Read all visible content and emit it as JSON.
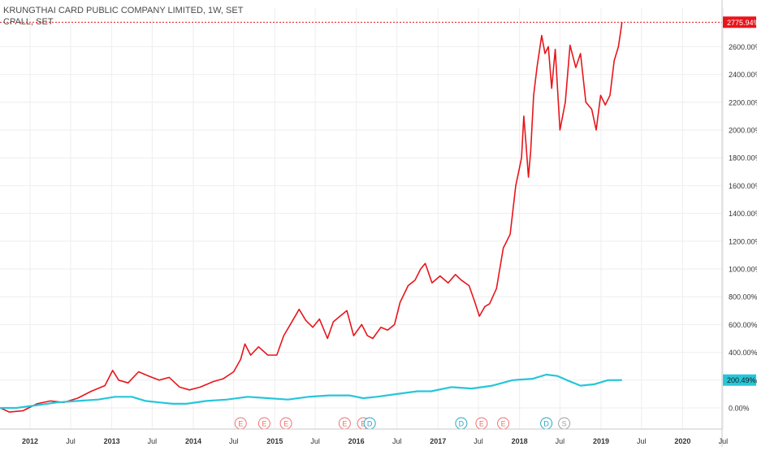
{
  "legend": {
    "main_symbol": "KRUNGTHAI CARD PUBLIC COMPANY LIMITED, 1W, SET",
    "compare_symbol": "CPALL, SET"
  },
  "colors": {
    "main_series": "#e8151b",
    "compare_series": "#26c6da",
    "grid": "#eeeeee",
    "axis_text": "#333333",
    "earnings_marker": "#ef6f6f",
    "dividend_marker": "#26a6c6",
    "split_marker": "#9e9e9e"
  },
  "chart_data": {
    "type": "line",
    "title": "KRUNGTHAI CARD PUBLIC COMPANY LIMITED, 1W, SET",
    "xlabel": "",
    "ylabel": "",
    "y_axis_unit": "%",
    "ylim": [
      -150,
      2850
    ],
    "grid": true,
    "x_ticks": [
      "2012",
      "Jul",
      "2013",
      "Jul",
      "2014",
      "Jul",
      "2015",
      "Jul",
      "2016",
      "Jul",
      "2017",
      "Jul",
      "2018",
      "Jul",
      "2019",
      "Jul",
      "2020",
      "Jul"
    ],
    "x_tick_dates": [
      "2012-01-01",
      "2012-07-01",
      "2013-01-01",
      "2013-07-01",
      "2014-01-01",
      "2014-07-01",
      "2015-01-01",
      "2015-07-01",
      "2016-01-01",
      "2016-07-01",
      "2017-01-01",
      "2017-07-01",
      "2018-01-01",
      "2018-07-01",
      "2019-01-01",
      "2019-07-01",
      "2020-01-01",
      "2020-07-01"
    ],
    "y_ticks": [
      0,
      200,
      400,
      600,
      800,
      1000,
      1200,
      1400,
      1600,
      1800,
      2000,
      2200,
      2400,
      2600
    ],
    "y_tick_labels": [
      "0.00%",
      "200.00%",
      "400.00%",
      "600.00%",
      "800.00%",
      "1000.00%",
      "1200.00%",
      "1400.00%",
      "1600.00%",
      "1800.00%",
      "2000.00%",
      "2200.00%",
      "2400.00%",
      "2600.00%"
    ],
    "series": [
      {
        "name": "KRUNGTHAI CARD PUBLIC COMPANY LIMITED",
        "last_value_label": "2775.94%",
        "points": [
          [
            "2011-08-20",
            0
          ],
          [
            "2011-10-01",
            -30
          ],
          [
            "2011-12-01",
            -20
          ],
          [
            "2012-02-01",
            30
          ],
          [
            "2012-04-01",
            50
          ],
          [
            "2012-06-01",
            40
          ],
          [
            "2012-08-01",
            70
          ],
          [
            "2012-10-01",
            120
          ],
          [
            "2012-12-01",
            160
          ],
          [
            "2013-01-05",
            270
          ],
          [
            "2013-02-01",
            200
          ],
          [
            "2013-03-15",
            180
          ],
          [
            "2013-05-01",
            260
          ],
          [
            "2013-06-15",
            230
          ],
          [
            "2013-08-01",
            200
          ],
          [
            "2013-09-15",
            220
          ],
          [
            "2013-11-01",
            150
          ],
          [
            "2013-12-15",
            130
          ],
          [
            "2014-02-01",
            150
          ],
          [
            "2014-04-01",
            190
          ],
          [
            "2014-05-15",
            210
          ],
          [
            "2014-07-01",
            260
          ],
          [
            "2014-08-01",
            350
          ],
          [
            "2014-08-20",
            460
          ],
          [
            "2014-09-15",
            380
          ],
          [
            "2014-10-20",
            440
          ],
          [
            "2014-12-01",
            380
          ],
          [
            "2015-01-10",
            380
          ],
          [
            "2015-02-10",
            520
          ],
          [
            "2015-03-15",
            610
          ],
          [
            "2015-04-20",
            710
          ],
          [
            "2015-05-20",
            630
          ],
          [
            "2015-06-20",
            580
          ],
          [
            "2015-07-20",
            640
          ],
          [
            "2015-08-25",
            500
          ],
          [
            "2015-09-20",
            620
          ],
          [
            "2015-10-20",
            660
          ],
          [
            "2015-11-20",
            700
          ],
          [
            "2015-12-20",
            520
          ],
          [
            "2016-01-25",
            600
          ],
          [
            "2016-02-20",
            520
          ],
          [
            "2016-03-15",
            500
          ],
          [
            "2016-04-20",
            580
          ],
          [
            "2016-05-20",
            560
          ],
          [
            "2016-06-20",
            600
          ],
          [
            "2016-07-15",
            760
          ],
          [
            "2016-08-20",
            880
          ],
          [
            "2016-09-20",
            920
          ],
          [
            "2016-10-15",
            1000
          ],
          [
            "2016-11-05",
            1040
          ],
          [
            "2016-12-05",
            900
          ],
          [
            "2017-01-10",
            950
          ],
          [
            "2017-02-15",
            900
          ],
          [
            "2017-03-20",
            960
          ],
          [
            "2017-04-15",
            920
          ],
          [
            "2017-05-20",
            880
          ],
          [
            "2017-06-15",
            760
          ],
          [
            "2017-07-05",
            660
          ],
          [
            "2017-07-30",
            730
          ],
          [
            "2017-08-20",
            750
          ],
          [
            "2017-09-20",
            860
          ],
          [
            "2017-10-20",
            1150
          ],
          [
            "2017-11-20",
            1250
          ],
          [
            "2017-12-15",
            1600
          ],
          [
            "2017-12-28",
            1700
          ],
          [
            "2018-01-10",
            1800
          ],
          [
            "2018-01-20",
            2100
          ],
          [
            "2018-01-30",
            1900
          ],
          [
            "2018-02-10",
            1660
          ],
          [
            "2018-02-20",
            1850
          ],
          [
            "2018-03-05",
            2250
          ],
          [
            "2018-03-20",
            2450
          ],
          [
            "2018-04-10",
            2680
          ],
          [
            "2018-04-25",
            2550
          ],
          [
            "2018-05-10",
            2600
          ],
          [
            "2018-05-25",
            2300
          ],
          [
            "2018-06-10",
            2580
          ],
          [
            "2018-07-01",
            2000
          ],
          [
            "2018-07-25",
            2200
          ],
          [
            "2018-08-15",
            2610
          ],
          [
            "2018-09-10",
            2450
          ],
          [
            "2018-10-01",
            2550
          ],
          [
            "2018-10-25",
            2200
          ],
          [
            "2018-11-20",
            2150
          ],
          [
            "2018-12-10",
            2000
          ],
          [
            "2018-12-30",
            2250
          ],
          [
            "2019-01-20",
            2180
          ],
          [
            "2019-02-10",
            2250
          ],
          [
            "2019-03-01",
            2500
          ],
          [
            "2019-03-20",
            2600
          ],
          [
            "2019-04-05",
            2775.94
          ]
        ]
      },
      {
        "name": "CPALL",
        "last_value_label": "200.49%",
        "points": [
          [
            "2011-08-20",
            0
          ],
          [
            "2011-11-01",
            0
          ],
          [
            "2012-02-01",
            20
          ],
          [
            "2012-05-01",
            40
          ],
          [
            "2012-08-01",
            50
          ],
          [
            "2012-11-01",
            60
          ],
          [
            "2013-01-15",
            80
          ],
          [
            "2013-04-01",
            80
          ],
          [
            "2013-06-01",
            50
          ],
          [
            "2013-08-01",
            40
          ],
          [
            "2013-10-01",
            30
          ],
          [
            "2013-12-01",
            30
          ],
          [
            "2014-03-01",
            50
          ],
          [
            "2014-06-01",
            60
          ],
          [
            "2014-09-01",
            80
          ],
          [
            "2014-12-01",
            70
          ],
          [
            "2015-03-01",
            60
          ],
          [
            "2015-06-01",
            80
          ],
          [
            "2015-09-01",
            90
          ],
          [
            "2015-12-01",
            90
          ],
          [
            "2016-02-01",
            70
          ],
          [
            "2016-04-01",
            80
          ],
          [
            "2016-07-01",
            100
          ],
          [
            "2016-10-01",
            120
          ],
          [
            "2016-12-01",
            120
          ],
          [
            "2017-03-01",
            150
          ],
          [
            "2017-06-01",
            140
          ],
          [
            "2017-09-01",
            160
          ],
          [
            "2017-12-01",
            200
          ],
          [
            "2018-03-01",
            210
          ],
          [
            "2018-05-01",
            240
          ],
          [
            "2018-06-20",
            230
          ],
          [
            "2018-08-01",
            200
          ],
          [
            "2018-10-01",
            160
          ],
          [
            "2018-12-01",
            170
          ],
          [
            "2019-02-01",
            200
          ],
          [
            "2019-04-05",
            200.49
          ]
        ]
      }
    ],
    "event_markers": [
      {
        "label": "E",
        "date": "2014-08-01",
        "kind": "earnings"
      },
      {
        "label": "E",
        "date": "2014-11-15",
        "kind": "earnings"
      },
      {
        "label": "E",
        "date": "2015-02-20",
        "kind": "earnings"
      },
      {
        "label": "E",
        "date": "2015-11-10",
        "kind": "earnings"
      },
      {
        "label": "E",
        "date": "2016-02-01",
        "kind": "earnings"
      },
      {
        "label": "D",
        "date": "2016-03-01",
        "kind": "dividend"
      },
      {
        "label": "D",
        "date": "2017-04-15",
        "kind": "dividend"
      },
      {
        "label": "E",
        "date": "2017-07-15",
        "kind": "earnings"
      },
      {
        "label": "E",
        "date": "2017-10-20",
        "kind": "earnings"
      },
      {
        "label": "D",
        "date": "2018-05-01",
        "kind": "dividend"
      },
      {
        "label": "S",
        "date": "2018-07-20",
        "kind": "split"
      }
    ]
  }
}
